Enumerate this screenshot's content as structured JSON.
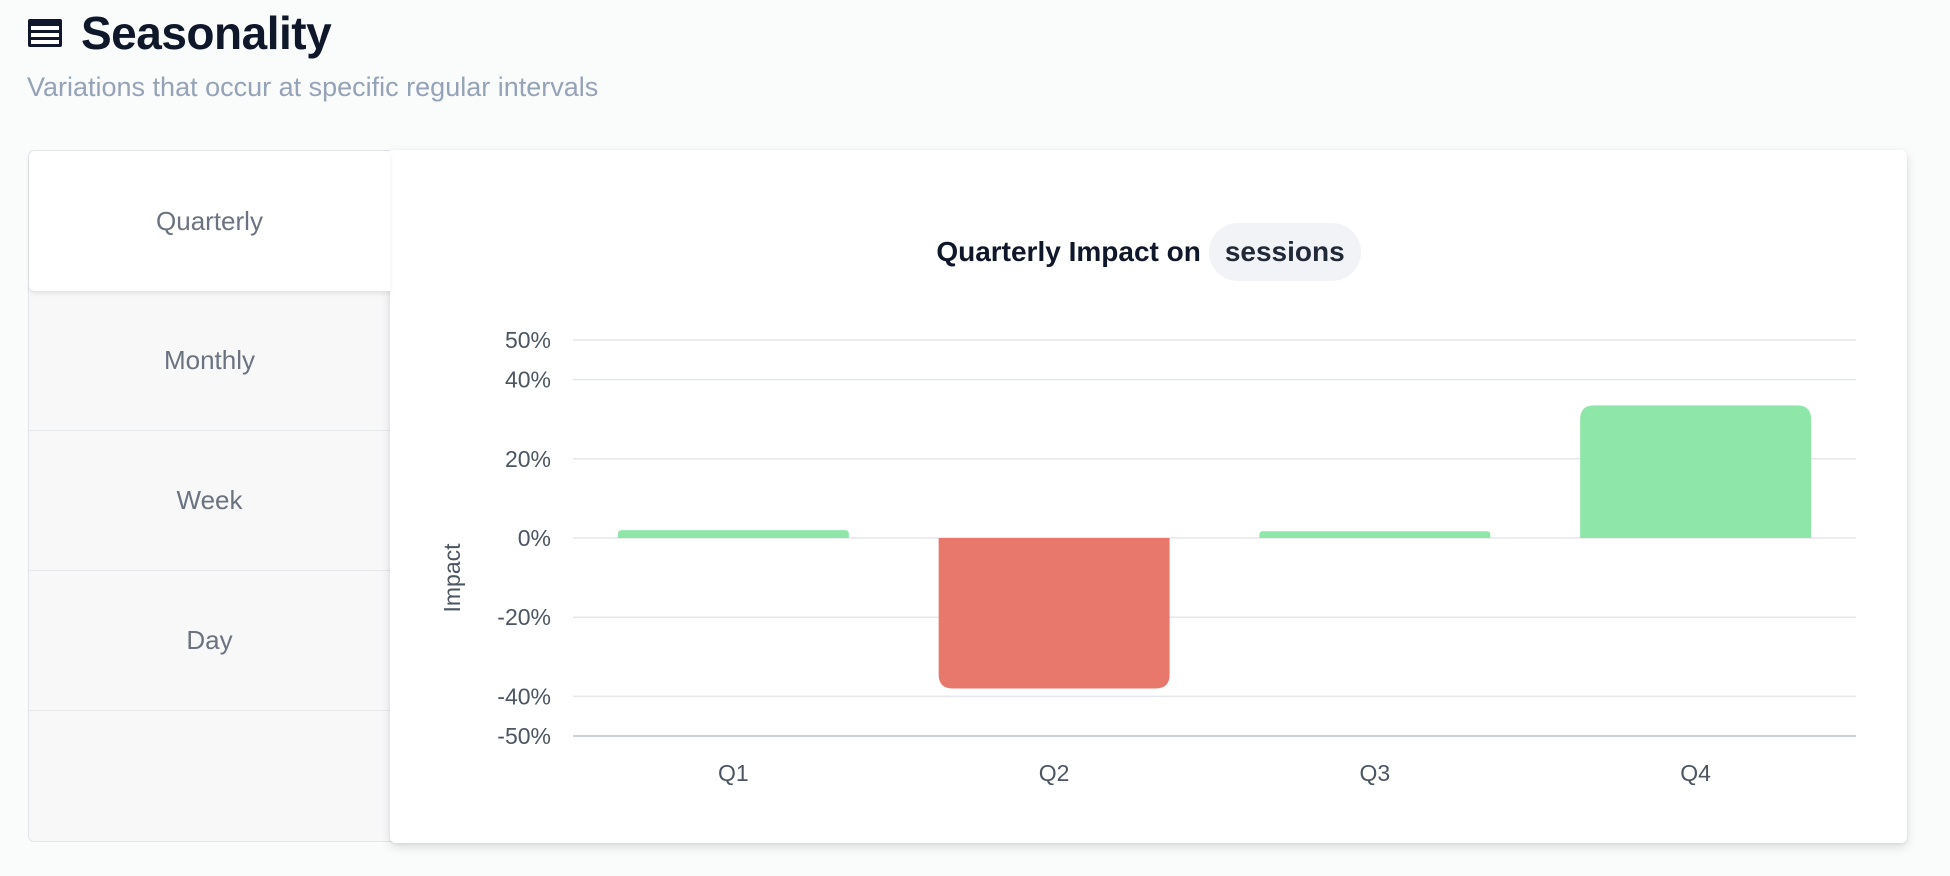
{
  "header": {
    "title": "Seasonality",
    "subtitle": "Variations that occur at specific regular intervals"
  },
  "icons": {
    "title": "table-icon"
  },
  "tabs": [
    {
      "label": "Quarterly",
      "active": true
    },
    {
      "label": "Monthly",
      "active": false
    },
    {
      "label": "Week",
      "active": false
    },
    {
      "label": "Day",
      "active": false
    }
  ],
  "chart": {
    "title_prefix": "Quarterly Impact on",
    "metric": "sessions"
  },
  "colors": {
    "positive": "#8ee6a9",
    "negative": "#e8776c"
  },
  "chart_data": {
    "type": "bar",
    "title": "Quarterly Impact on sessions",
    "xlabel": "",
    "ylabel": "Impact",
    "categories": [
      "Q1",
      "Q2",
      "Q3",
      "Q4"
    ],
    "values": [
      2,
      -38,
      1.7,
      33.5
    ],
    "unit": "%",
    "ylim": [
      -50,
      50
    ],
    "yticks": [
      50,
      40,
      20,
      0,
      -20,
      -40,
      -50
    ],
    "ytick_labels": [
      "50%",
      "40%",
      "20%",
      "0%",
      "-20%",
      "-40%",
      "-50%"
    ],
    "grid": true,
    "legend": "none"
  }
}
